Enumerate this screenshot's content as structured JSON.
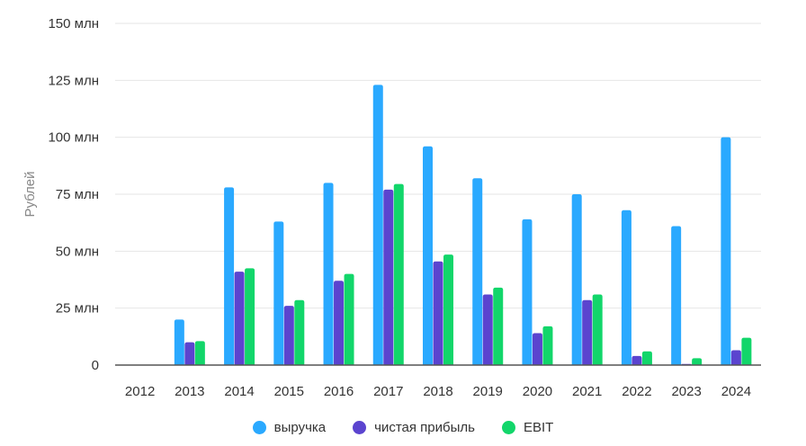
{
  "colors": {
    "revenue": "#2aa9ff",
    "net_profit": "#5b44cf",
    "ebit": "#12d66a",
    "grid": "#e6e6e6",
    "axis": "#333333",
    "ylabel": "#888888"
  },
  "chart_data": {
    "type": "bar",
    "ylabel": "Рублей",
    "xlabel": "",
    "ylim": [
      0,
      150000000
    ],
    "y_ticks": [
      {
        "value": 0,
        "label": "0"
      },
      {
        "value": 25000000,
        "label": "25 млн"
      },
      {
        "value": 50000000,
        "label": "50 млн"
      },
      {
        "value": 75000000,
        "label": "75 млн"
      },
      {
        "value": 100000000,
        "label": "100 млн"
      },
      {
        "value": 125000000,
        "label": "125 млн"
      },
      {
        "value": 150000000,
        "label": "150 млн"
      }
    ],
    "grid": true,
    "legend_position": "bottom",
    "categories": [
      "2012",
      "2013",
      "2014",
      "2015",
      "2016",
      "2017",
      "2018",
      "2019",
      "2020",
      "2021",
      "2022",
      "2023",
      "2024"
    ],
    "series": [
      {
        "key": "revenue",
        "name": "выручка",
        "values": [
          0,
          20000000,
          78000000,
          63000000,
          80000000,
          123000000,
          96000000,
          82000000,
          64000000,
          75000000,
          68000000,
          61000000,
          100000000
        ]
      },
      {
        "key": "net_profit",
        "name": "чистая прибыль",
        "values": [
          0,
          10000000,
          41000000,
          26000000,
          37000000,
          77000000,
          45500000,
          31000000,
          14000000,
          28500000,
          4000000,
          500000,
          6500000
        ]
      },
      {
        "key": "ebit",
        "name": "EBIT",
        "values": [
          0,
          10500000,
          42500000,
          28500000,
          40000000,
          79500000,
          48500000,
          34000000,
          17000000,
          31000000,
          6000000,
          3000000,
          12000000
        ]
      }
    ]
  }
}
